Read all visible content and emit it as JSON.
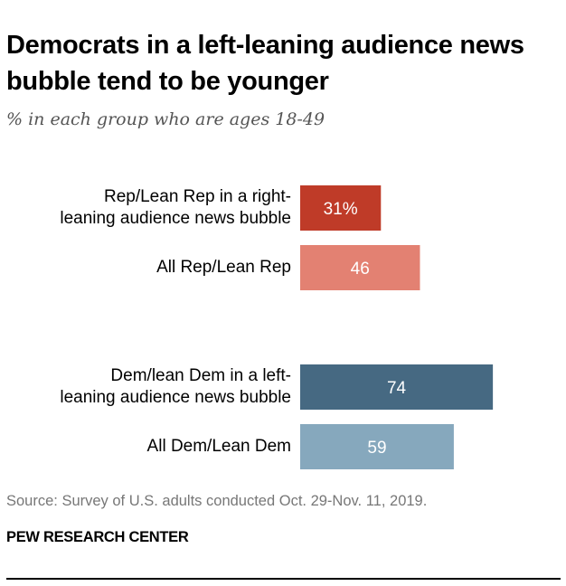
{
  "chart_data": {
    "type": "bar",
    "orientation": "horizontal",
    "title": "Democrats in a left-leaning audience news bubble tend to be younger",
    "subtitle": "% in each group who are ages 18-49",
    "categories": [
      "Rep/Lean Rep in a right-leaning audience news bubble",
      "All Rep/Lean Rep",
      "Dem/lean Dem in a left-leaning audience news bubble",
      "All Dem/Lean Dem"
    ],
    "label_lines": [
      [
        "Rep/Lean Rep in a right-",
        "leaning audience news bubble"
      ],
      [
        "All Rep/Lean Rep"
      ],
      [
        "Dem/lean Dem in a left-",
        "leaning audience news bubble"
      ],
      [
        "All Dem/Lean Dem"
      ]
    ],
    "values": [
      31,
      46,
      74,
      59
    ],
    "value_labels": [
      "31%",
      "46",
      "74",
      "59"
    ],
    "colors": [
      "#bf3b28",
      "#e38172",
      "#466982",
      "#86a8bd"
    ],
    "groups": [
      "Republican",
      "Republican",
      "Democrat",
      "Democrat"
    ],
    "xlabel": "",
    "ylabel": "",
    "xlim": [
      0,
      100
    ],
    "grid": false,
    "legend": "none"
  },
  "footer": {
    "source": "Source: Survey of U.S. adults conducted Oct. 29-Nov. 11, 2019.",
    "brand": "PEW RESEARCH CENTER"
  }
}
